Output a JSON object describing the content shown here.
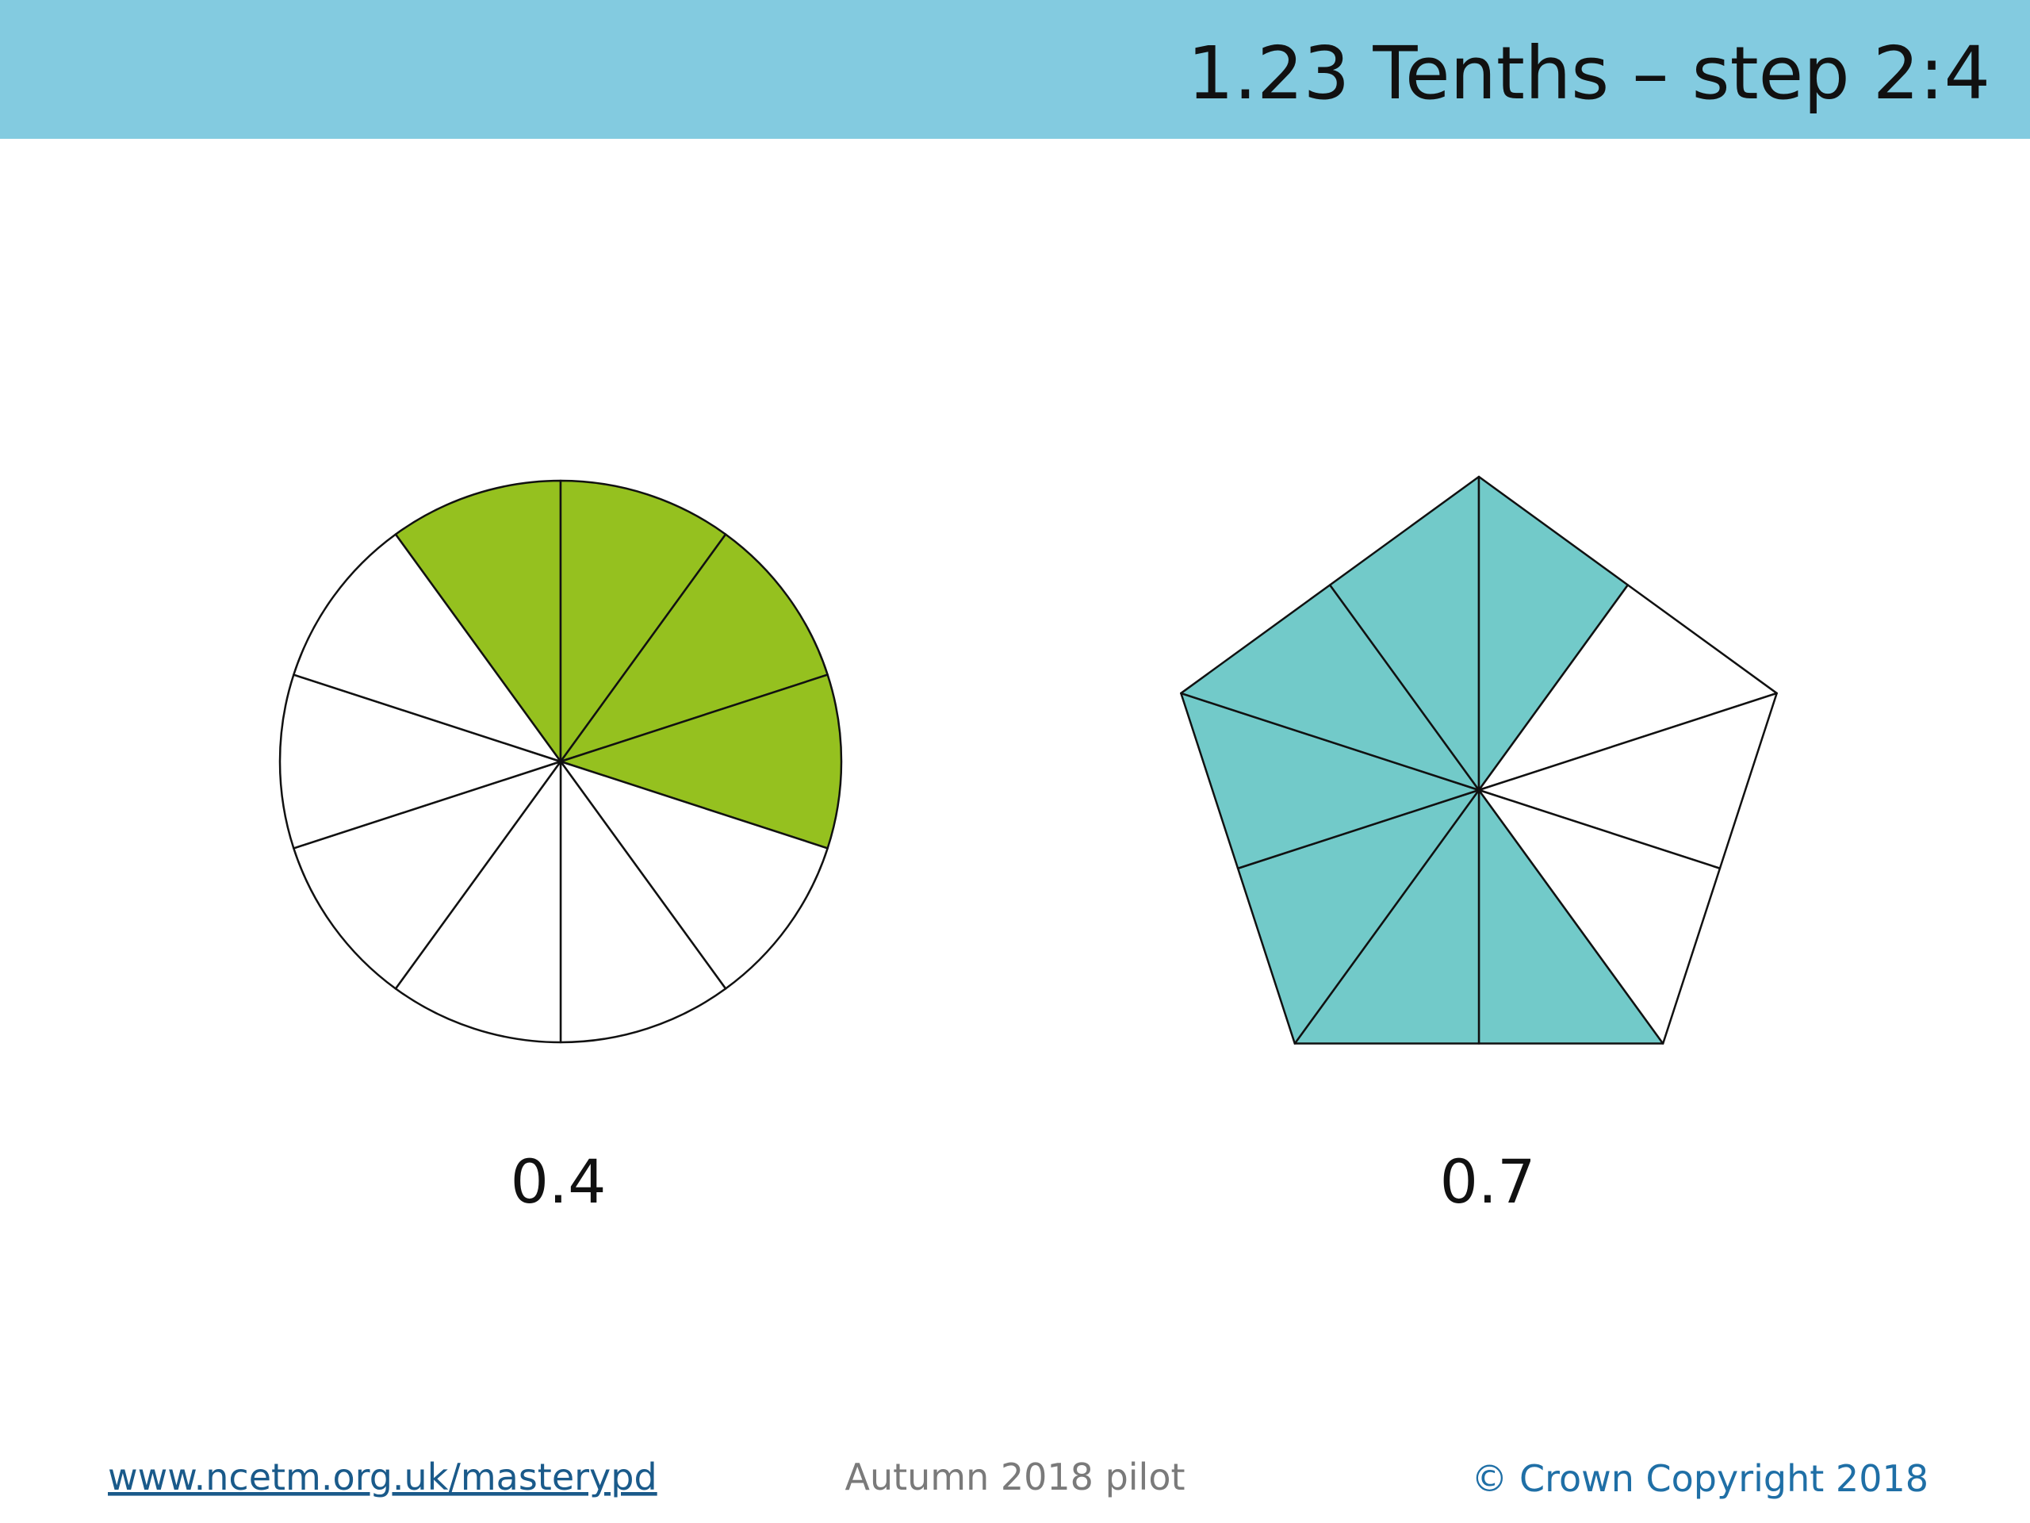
{
  "header": {
    "title": "1.23 Tenths – step 2:4"
  },
  "figures": [
    {
      "shape": "circle",
      "label": "0.4",
      "color": "#95c11f"
    },
    {
      "shape": "pentagon",
      "label": "0.7",
      "color": "#72cac9"
    }
  ],
  "footer": {
    "link": "www.ncetm.org.uk/masterypd",
    "note": "Autumn 2018 pilot",
    "copyright": "© Crown Copyright 2018"
  }
}
